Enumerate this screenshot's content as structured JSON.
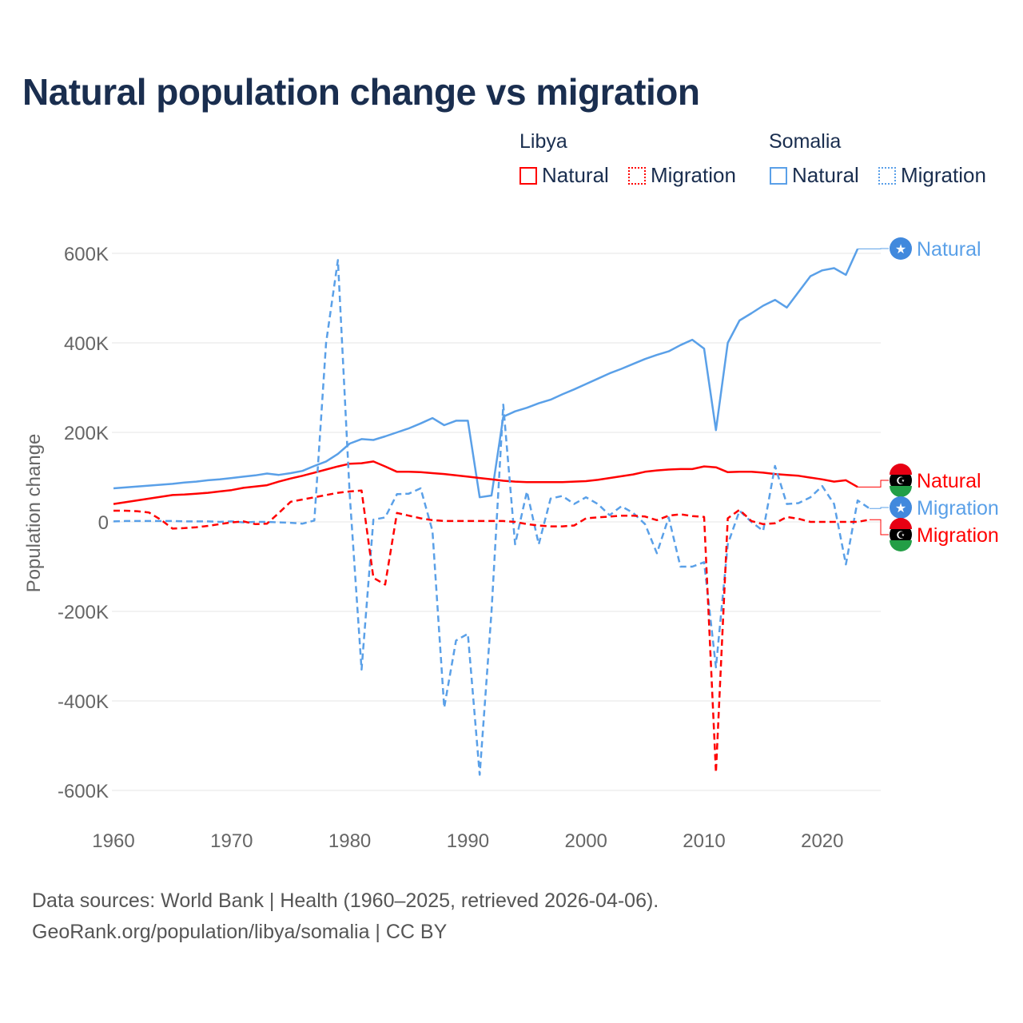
{
  "chart_data": {
    "type": "line",
    "title": "Natural population change vs migration",
    "ylabel": "Population change",
    "xlabel": "",
    "ylim": [
      -600000,
      600000
    ],
    "xlim": [
      1960,
      2025
    ],
    "yticks": [
      "600K",
      "400K",
      "200K",
      "0",
      "-200K",
      "-400K",
      "-600K"
    ],
    "ytick_values": [
      600000,
      400000,
      200000,
      0,
      -200000,
      -400000,
      -600000
    ],
    "xticks": [
      "1960",
      "1970",
      "1980",
      "1990",
      "2000",
      "2010",
      "2020"
    ],
    "xtick_values": [
      1960,
      1970,
      1980,
      1990,
      2000,
      2010,
      2020
    ],
    "grid": true,
    "legend_groups": [
      {
        "name": "Libya",
        "items": [
          "Natural",
          "Migration"
        ]
      },
      {
        "name": "Somalia",
        "items": [
          "Natural",
          "Migration"
        ]
      }
    ],
    "x_start": 1960,
    "series": [
      {
        "country": "Somalia",
        "name": "Natural",
        "end_label": "Natural",
        "color": "#5aa0e8",
        "dash": false,
        "values": [
          75,
          77,
          79,
          81,
          83,
          85,
          88,
          90,
          93,
          95,
          98,
          101,
          104,
          108,
          105,
          109,
          114,
          125,
          135,
          152,
          175,
          185,
          183,
          191,
          200,
          209,
          220,
          232,
          216,
          226,
          226,
          55,
          59,
          235,
          247,
          255,
          265,
          273,
          285,
          296,
          308,
          320,
          332,
          342,
          353,
          364,
          373,
          381,
          395,
          407,
          387,
          205,
          400,
          450,
          466,
          483,
          496,
          479,
          514,
          549,
          562,
          567,
          552,
          610,
          null
        ]
      },
      {
        "country": "Libya",
        "name": "Natural",
        "end_label": "Natural",
        "color": "#ff0000",
        "dash": false,
        "values": [
          40,
          44,
          48,
          52,
          56,
          60,
          61,
          63,
          65,
          68,
          71,
          76,
          79,
          82,
          90,
          97,
          103,
          110,
          117,
          124,
          130,
          131,
          135,
          124,
          112,
          112,
          111,
          109,
          107,
          104,
          101,
          98,
          95,
          92,
          90,
          89,
          89,
          89,
          89,
          90,
          91,
          94,
          98,
          102,
          106,
          112,
          115,
          117,
          118,
          118,
          124,
          122,
          111,
          112,
          112,
          110,
          107,
          105,
          103,
          99,
          95,
          90,
          93,
          78,
          null
        ]
      },
      {
        "country": "Somalia",
        "name": "Migration",
        "end_label": "Migration",
        "color": "#5aa0e8",
        "dash": true,
        "values": [
          1,
          2,
          2,
          2,
          2,
          2,
          1,
          1,
          1,
          0,
          1,
          -1,
          0,
          0,
          -1,
          -2,
          -4,
          3,
          400,
          585,
          60,
          -330,
          5,
          10,
          62,
          63,
          75,
          -20,
          -415,
          -265,
          -250,
          -565,
          -200,
          262,
          -50,
          68,
          -50,
          52,
          58,
          40,
          55,
          40,
          15,
          35,
          20,
          -5,
          -70,
          10,
          -100,
          -100,
          -90,
          -325,
          -50,
          25,
          0,
          -20,
          125,
          40,
          42,
          55,
          80,
          40,
          -95,
          48,
          30
        ]
      },
      {
        "country": "Libya",
        "name": "Migration",
        "end_label": "Migration",
        "color": "#ff0000",
        "dash": true,
        "values": [
          25,
          25,
          24,
          21,
          5,
          -15,
          -14,
          -12,
          -9,
          -5,
          -1,
          1,
          -5,
          -4,
          20,
          45,
          50,
          55,
          60,
          65,
          68,
          70,
          -125,
          -140,
          20,
          14,
          8,
          4,
          2,
          2,
          2,
          2,
          2,
          2,
          0,
          -5,
          -8,
          -10,
          -10,
          -8,
          8,
          10,
          12,
          14,
          14,
          12,
          4,
          14,
          17,
          13,
          11,
          -560,
          8,
          27,
          2,
          -5,
          -3,
          11,
          7,
          0,
          0,
          0,
          0,
          0,
          5
        ]
      }
    ],
    "value_units": "thousands"
  },
  "footer": {
    "line1": "Data sources: World Bank | Health (1960–2025, retrieved 2026-04-06).",
    "line2": "GeoRank.org/population/libya/somalia | CC BY"
  }
}
